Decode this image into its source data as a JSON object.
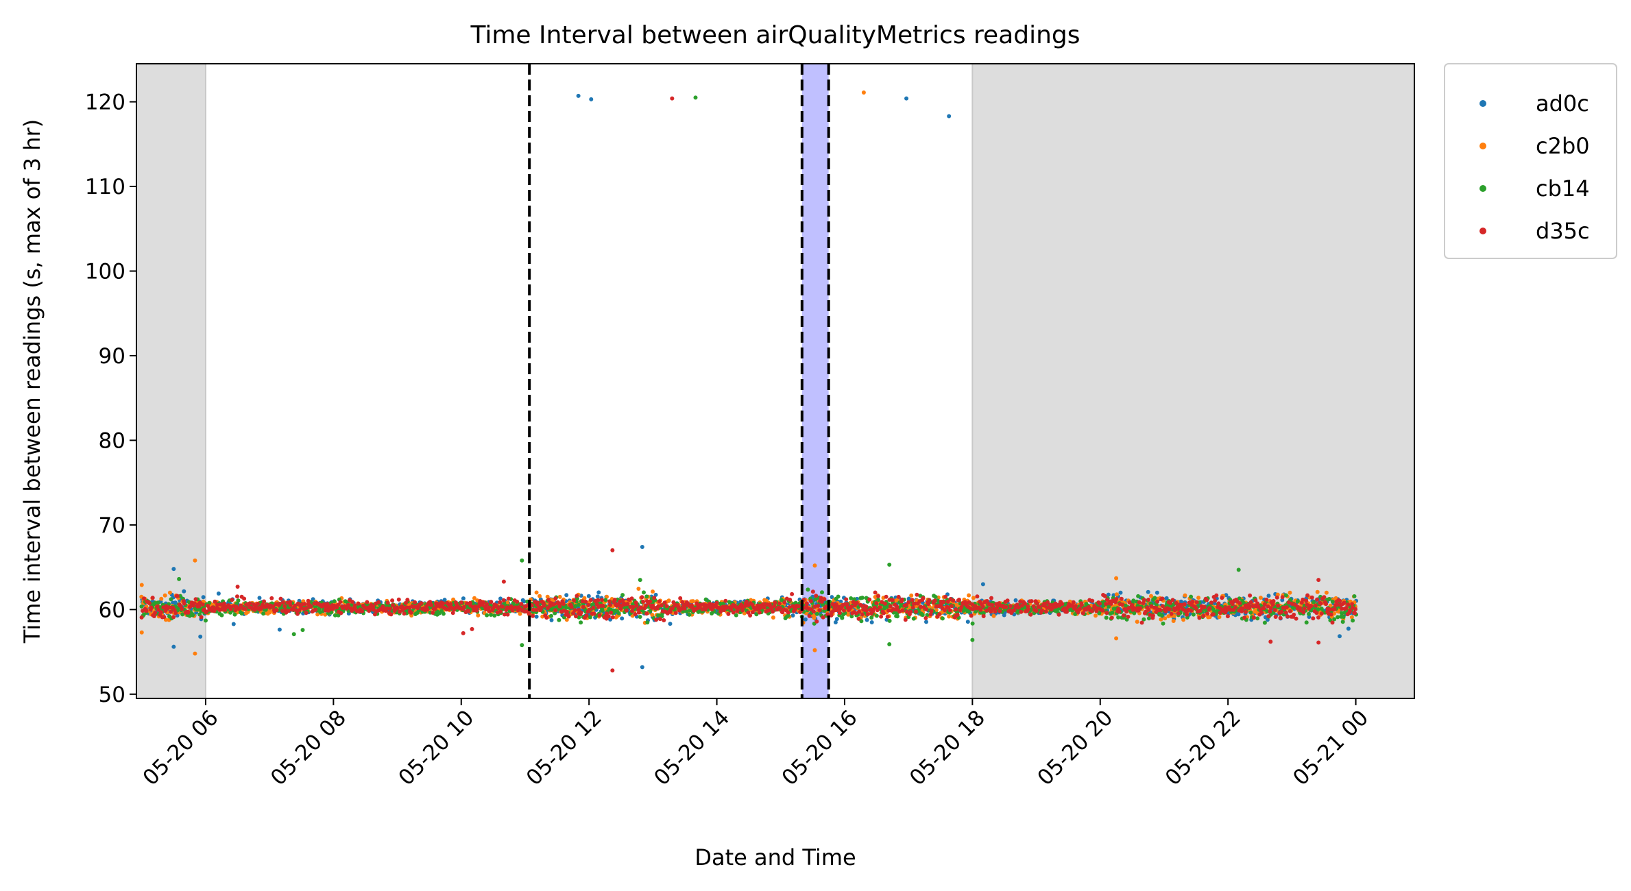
{
  "chart_data": {
    "type": "scatter",
    "title": "Time Interval between airQualityMetrics readings",
    "xlabel": "Date and Time",
    "ylabel": "Time interval between readings (s, max of 3 hr)",
    "x_axis": {
      "range": [
        "2020-05-20 04:55",
        "2020-05-21 00:55"
      ],
      "ticks": [
        {
          "value": "2020-05-20 06:00",
          "label": "05-20 06"
        },
        {
          "value": "2020-05-20 08:00",
          "label": "05-20 08"
        },
        {
          "value": "2020-05-20 10:00",
          "label": "05-20 10"
        },
        {
          "value": "2020-05-20 12:00",
          "label": "05-20 12"
        },
        {
          "value": "2020-05-20 14:00",
          "label": "05-20 14"
        },
        {
          "value": "2020-05-20 16:00",
          "label": "05-20 16"
        },
        {
          "value": "2020-05-20 18:00",
          "label": "05-20 18"
        },
        {
          "value": "2020-05-20 20:00",
          "label": "05-20 20"
        },
        {
          "value": "2020-05-20 22:00",
          "label": "05-20 22"
        },
        {
          "value": "2020-05-21 00:00",
          "label": "05-21 00"
        }
      ]
    },
    "y_axis": {
      "range": [
        49.5,
        124.5
      ],
      "ticks": [
        50,
        60,
        70,
        80,
        90,
        100,
        110,
        120
      ]
    },
    "legend_position": "outside-top-right",
    "grid": false,
    "shaded_regions": [
      {
        "start": "2020-05-20 04:55",
        "end": "2020-05-20 06:00",
        "color": "#dddddd"
      },
      {
        "start": "2020-05-20 18:00",
        "end": "2020-05-21 00:55",
        "color": "#dddddd"
      },
      {
        "start": "2020-05-20 15:20",
        "end": "2020-05-20 15:45",
        "color": "#c0c0ff"
      }
    ],
    "vertical_lines": [
      {
        "time": "2020-05-20 11:04",
        "style": "dashed"
      },
      {
        "time": "2020-05-20 15:20",
        "style": "dashed"
      },
      {
        "time": "2020-05-20 15:45",
        "style": "dashed"
      }
    ],
    "series": [
      {
        "name": "ad0c",
        "color": "#1f77b4",
        "baseline": 60.3,
        "x_start": "2020-05-20 05:00",
        "x_end": "2020-05-21 00:00",
        "interval_s": 60,
        "outliers": [
          {
            "x": "2020-05-20 05:30",
            "y": 64.8
          },
          {
            "x": "2020-05-20 05:30",
            "y": 55.6
          },
          {
            "x": "2020-05-20 05:55",
            "y": 56.8
          },
          {
            "x": "2020-05-20 11:50",
            "y": 120.7
          },
          {
            "x": "2020-05-20 12:02",
            "y": 120.3
          },
          {
            "x": "2020-05-20 12:50",
            "y": 67.4
          },
          {
            "x": "2020-05-20 12:50",
            "y": 53.2
          },
          {
            "x": "2020-05-20 16:58",
            "y": 120.4
          },
          {
            "x": "2020-05-20 17:38",
            "y": 118.3
          },
          {
            "x": "2020-05-20 18:10",
            "y": 63.0
          }
        ]
      },
      {
        "name": "c2b0",
        "color": "#ff7f0e",
        "baseline": 60.3,
        "x_start": "2020-05-20 05:00",
        "x_end": "2020-05-21 00:00",
        "interval_s": 60,
        "outliers": [
          {
            "x": "2020-05-20 05:00",
            "y": 62.9
          },
          {
            "x": "2020-05-20 05:00",
            "y": 57.3
          },
          {
            "x": "2020-05-20 05:50",
            "y": 65.8
          },
          {
            "x": "2020-05-20 05:50",
            "y": 54.8
          },
          {
            "x": "2020-05-20 15:32",
            "y": 65.2
          },
          {
            "x": "2020-05-20 15:32",
            "y": 55.2
          },
          {
            "x": "2020-05-20 16:18",
            "y": 121.1
          },
          {
            "x": "2020-05-20 20:15",
            "y": 63.7
          },
          {
            "x": "2020-05-20 20:15",
            "y": 56.6
          }
        ]
      },
      {
        "name": "cb14",
        "color": "#2ca02c",
        "baseline": 60.2,
        "x_start": "2020-05-20 05:00",
        "x_end": "2020-05-21 00:00",
        "interval_s": 60,
        "outliers": [
          {
            "x": "2020-05-20 05:35",
            "y": 63.6
          },
          {
            "x": "2020-05-20 10:57",
            "y": 65.8
          },
          {
            "x": "2020-05-20 10:57",
            "y": 55.8
          },
          {
            "x": "2020-05-20 12:48",
            "y": 63.5
          },
          {
            "x": "2020-05-20 13:40",
            "y": 120.5
          },
          {
            "x": "2020-05-20 16:42",
            "y": 65.3
          },
          {
            "x": "2020-05-20 16:42",
            "y": 55.9
          },
          {
            "x": "2020-05-20 22:10",
            "y": 64.7
          },
          {
            "x": "2020-05-20 18:00",
            "y": 56.4
          }
        ]
      },
      {
        "name": "d35c",
        "color": "#d62728",
        "baseline": 60.3,
        "x_start": "2020-05-20 05:00",
        "x_end": "2020-05-21 00:00",
        "interval_s": 60,
        "outliers": [
          {
            "x": "2020-05-20 12:22",
            "y": 67.0
          },
          {
            "x": "2020-05-20 12:22",
            "y": 52.8
          },
          {
            "x": "2020-05-20 13:18",
            "y": 120.4
          },
          {
            "x": "2020-05-20 06:30",
            "y": 62.7
          },
          {
            "x": "2020-05-20 22:40",
            "y": 56.2
          },
          {
            "x": "2020-05-20 23:25",
            "y": 56.1
          },
          {
            "x": "2020-05-20 23:25",
            "y": 63.5
          },
          {
            "x": "2020-05-20 10:40",
            "y": 63.3
          }
        ]
      }
    ]
  }
}
